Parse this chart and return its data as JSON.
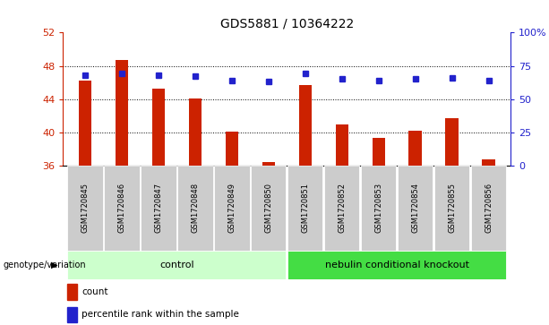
{
  "title": "GDS5881 / 10364222",
  "samples": [
    "GSM1720845",
    "GSM1720846",
    "GSM1720847",
    "GSM1720848",
    "GSM1720849",
    "GSM1720850",
    "GSM1720851",
    "GSM1720852",
    "GSM1720853",
    "GSM1720854",
    "GSM1720855",
    "GSM1720856"
  ],
  "counts": [
    46.2,
    48.7,
    45.3,
    44.1,
    40.1,
    36.4,
    45.7,
    41.0,
    39.3,
    40.2,
    41.7,
    36.8
  ],
  "percentile_right": [
    68,
    69,
    68,
    67,
    64,
    63,
    69,
    65,
    64,
    65,
    66,
    64
  ],
  "ylim_left": [
    36,
    52
  ],
  "ylim_right": [
    0,
    100
  ],
  "yticks_left": [
    36,
    40,
    44,
    48,
    52
  ],
  "yticks_right": [
    0,
    25,
    50,
    75,
    100
  ],
  "ytick_labels_left": [
    "36",
    "40",
    "44",
    "48",
    "52"
  ],
  "ytick_labels_right": [
    "0",
    "25",
    "50",
    "75",
    "100%"
  ],
  "bar_color": "#cc2200",
  "dot_color": "#2222cc",
  "control_color": "#ccffcc",
  "knockout_color": "#44dd44",
  "genotype_label": "genotype/variation",
  "legend_count": "count",
  "legend_pct": "percentile rank within the sample",
  "bar_bottom": 36,
  "bar_width": 0.35,
  "n_control": 6,
  "n_knockout": 6
}
